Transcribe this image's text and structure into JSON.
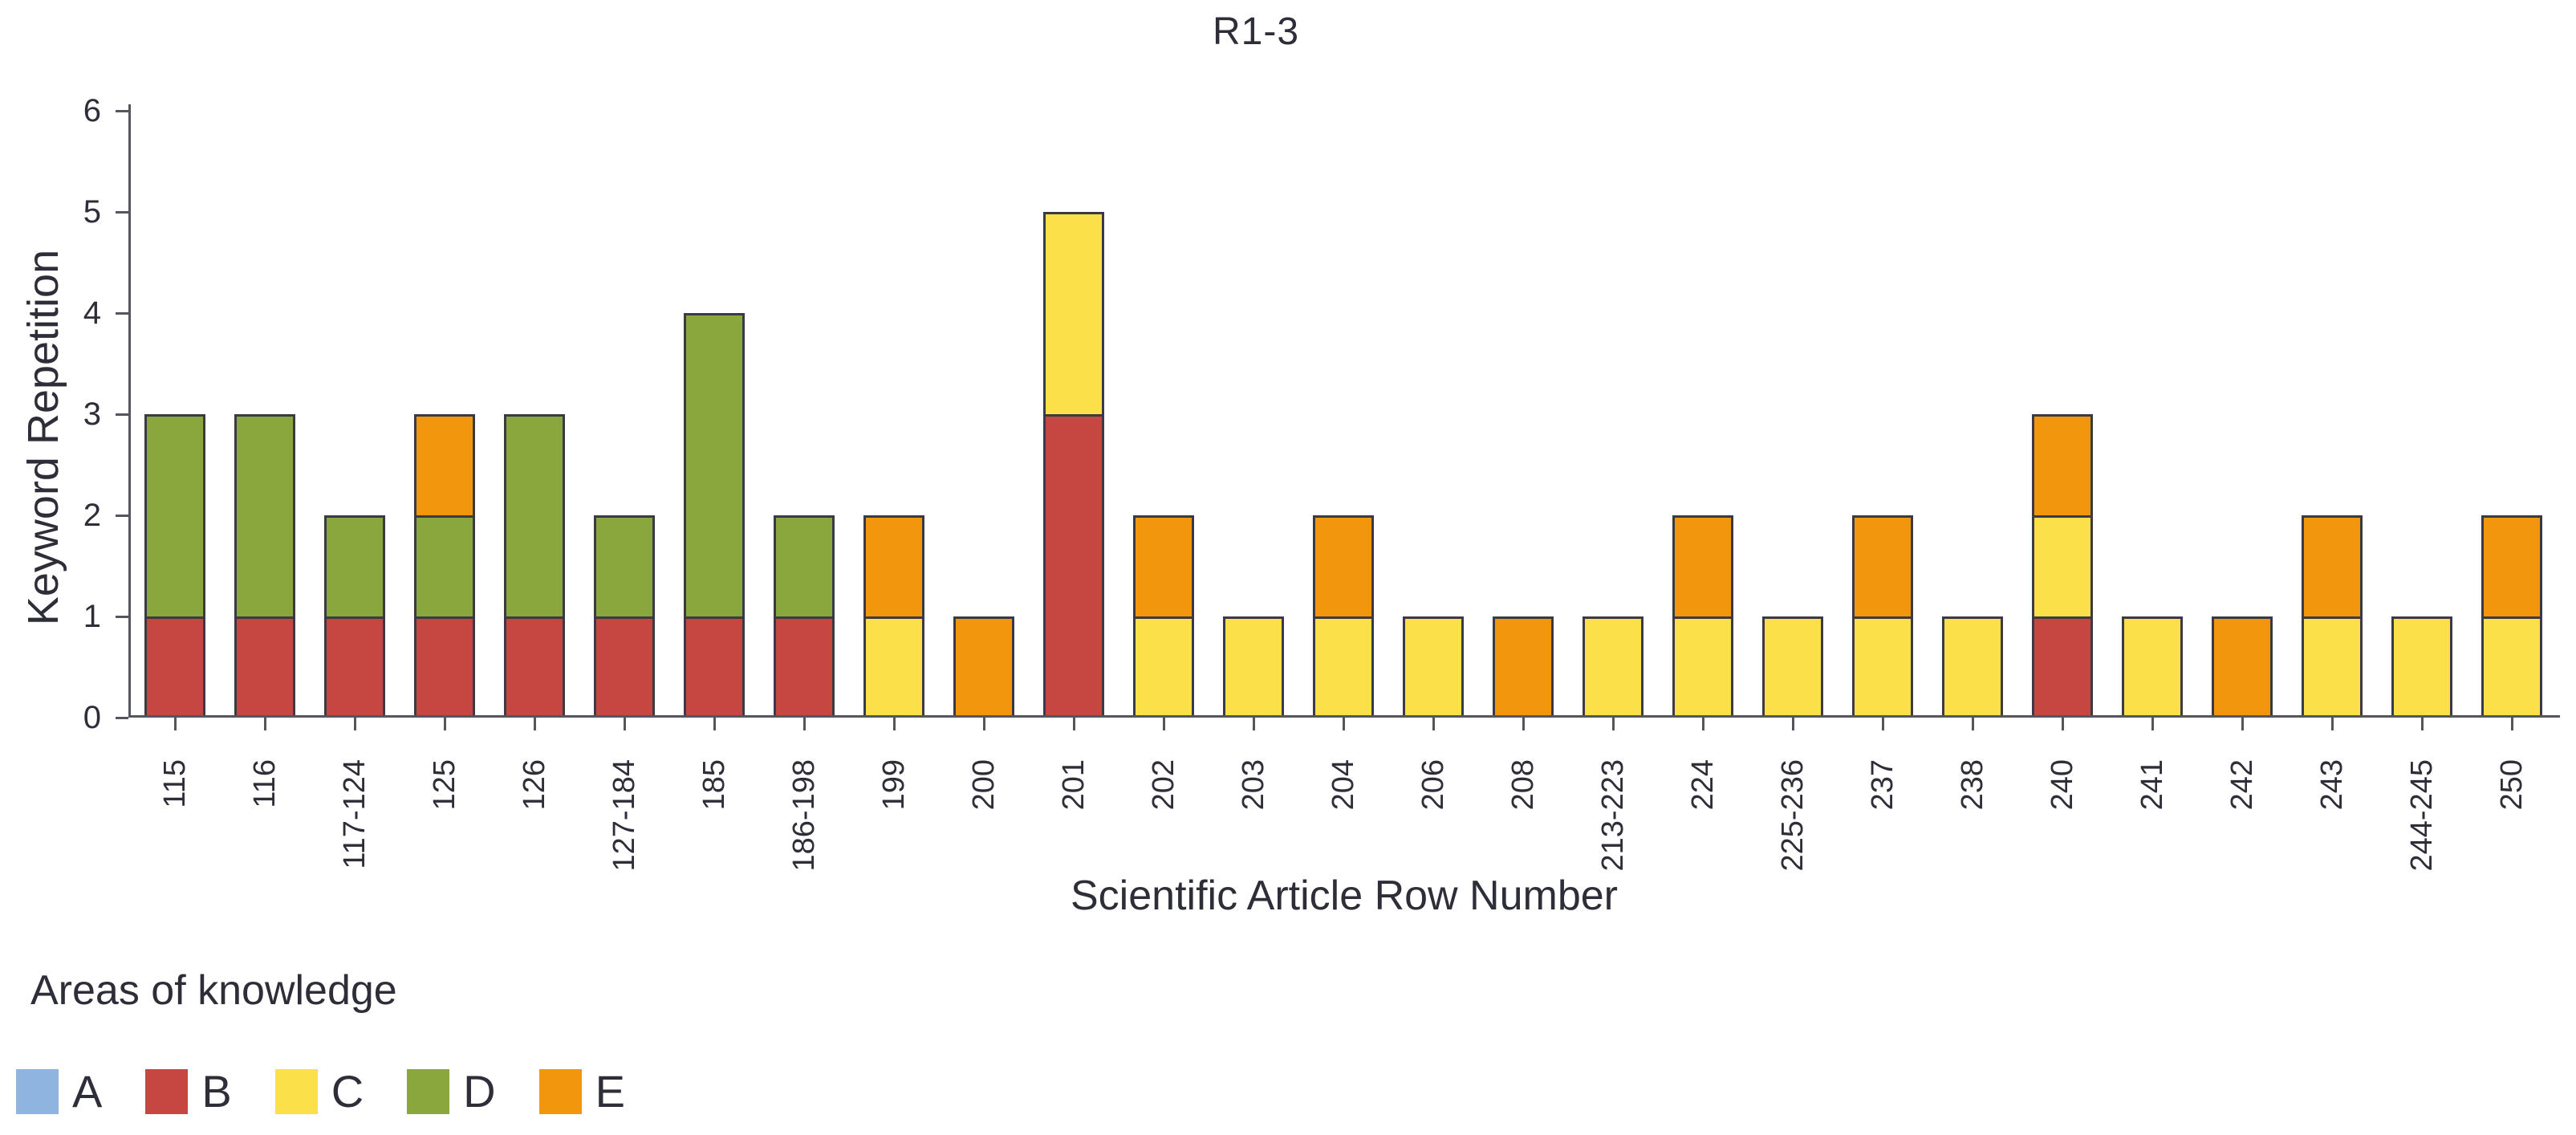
{
  "chart_data": {
    "type": "bar",
    "stacked": true,
    "title": "R1-3",
    "xlabel": "Scientific Article Row Number",
    "ylabel": "Keyword Repetition",
    "ylim": [
      0,
      6
    ],
    "yticks": [
      0,
      1,
      2,
      3,
      4,
      5,
      6
    ],
    "grid": false,
    "legend_title": "Areas of knowledge",
    "legend_position": "bottom-left",
    "categories": [
      "115",
      "116",
      "117-124",
      "125",
      "126",
      "127-184",
      "185",
      "186-198",
      "199",
      "200",
      "201",
      "202",
      "203",
      "204",
      "206",
      "208",
      "213-223",
      "224",
      "225-236",
      "237",
      "238",
      "240",
      "241",
      "242",
      "243",
      "244-245",
      "250"
    ],
    "series": [
      {
        "name": "A",
        "color": "#8fb4e0",
        "values": [
          0,
          0,
          0,
          0,
          0,
          0,
          0,
          0,
          0,
          0,
          0,
          0,
          0,
          0,
          0,
          0,
          0,
          0,
          0,
          0,
          0,
          0,
          0,
          0,
          0,
          0,
          0
        ]
      },
      {
        "name": "B",
        "color": "#c64742",
        "values": [
          1,
          1,
          1,
          1,
          1,
          1,
          1,
          1,
          0,
          0,
          3,
          0,
          0,
          0,
          0,
          0,
          0,
          0,
          0,
          0,
          0,
          1,
          0,
          0,
          0,
          0,
          0
        ]
      },
      {
        "name": "C",
        "color": "#fbe04a",
        "values": [
          0,
          0,
          0,
          0,
          0,
          0,
          0,
          0,
          1,
          0,
          2,
          1,
          1,
          1,
          1,
          0,
          1,
          1,
          1,
          1,
          1,
          1,
          1,
          0,
          1,
          1,
          1
        ]
      },
      {
        "name": "D",
        "color": "#89a73d",
        "values": [
          2,
          2,
          1,
          1,
          2,
          1,
          3,
          1,
          0,
          0,
          0,
          0,
          0,
          0,
          0,
          0,
          0,
          0,
          0,
          0,
          0,
          0,
          0,
          0,
          0,
          0,
          0
        ]
      },
      {
        "name": "E",
        "color": "#f2960d",
        "values": [
          0,
          0,
          0,
          1,
          0,
          0,
          0,
          0,
          1,
          1,
          0,
          1,
          0,
          1,
          0,
          1,
          0,
          1,
          0,
          1,
          0,
          1,
          0,
          1,
          1,
          0,
          1
        ]
      }
    ],
    "style": {
      "axis_color": "#55555e",
      "bar_border_color": "#3a3a44",
      "text_color": "#2e2e38",
      "background": "#ffffff"
    }
  }
}
